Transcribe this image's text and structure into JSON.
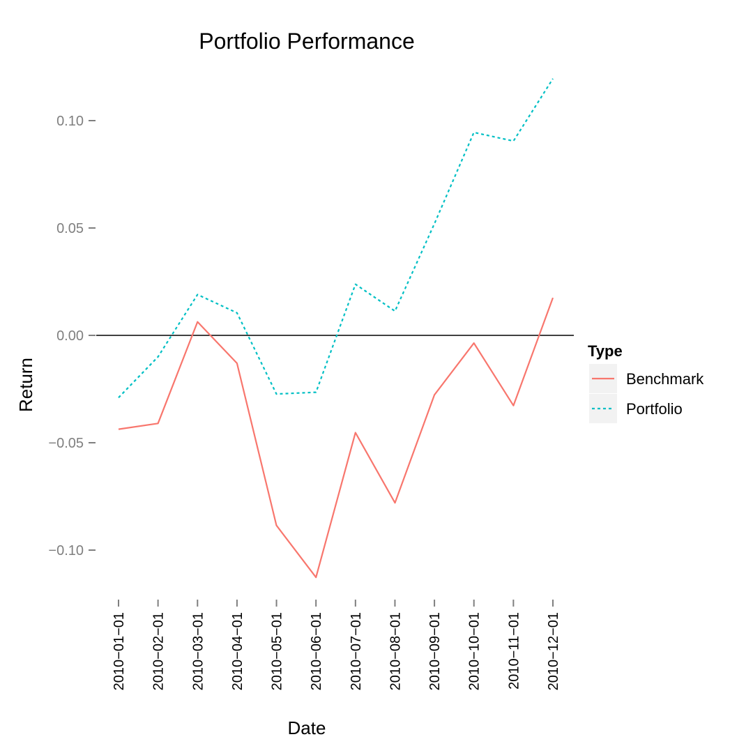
{
  "chart_data": {
    "type": "line",
    "title": "Portfolio Performance",
    "xlabel": "Date",
    "ylabel": "Return",
    "x": [
      "2010-01-01",
      "2010-02-01",
      "2010-03-01",
      "2010-04-01",
      "2010-05-01",
      "2010-06-01",
      "2010-07-01",
      "2010-08-01",
      "2010-09-01",
      "2010-10-01",
      "2010-11-01",
      "2010-12-01"
    ],
    "x_tick_labels": [
      "2010−01−01",
      "2010−02−01",
      "2010−03−01",
      "2010−04−01",
      "2010−05−01",
      "2010−06−01",
      "2010−07−01",
      "2010−08−01",
      "2010−09−01",
      "2010−10−01",
      "2010−11−01",
      "2010−12−01"
    ],
    "y_ticks": [
      -0.1,
      -0.05,
      0.0,
      0.05,
      0.1
    ],
    "y_tick_labels": [
      "−0.10",
      "−0.05",
      "0.00",
      "0.05",
      "0.10"
    ],
    "ylim": [
      -0.12,
      0.125
    ],
    "reference_line": 0,
    "grid": false,
    "legend": {
      "title": "Type",
      "placement": "right"
    },
    "series": [
      {
        "name": "Benchmark",
        "color": "#f8766d",
        "dash": "solid",
        "values": [
          -0.0437,
          -0.041,
          0.0063,
          -0.013,
          -0.0885,
          -0.1127,
          -0.0453,
          -0.078,
          -0.0277,
          -0.0036,
          -0.0327,
          0.0175
        ]
      },
      {
        "name": "Portfolio",
        "color": "#00bfc4",
        "dash": "dotted",
        "values": [
          -0.029,
          -0.01,
          0.019,
          0.0105,
          -0.0273,
          -0.0265,
          0.0238,
          0.0113,
          0.052,
          0.0945,
          0.0905,
          0.1195
        ]
      }
    ]
  }
}
